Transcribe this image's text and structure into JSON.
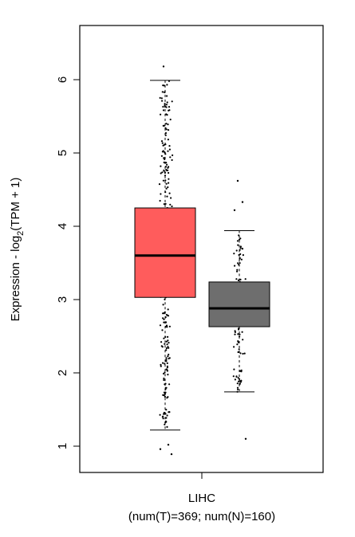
{
  "chart_data": {
    "type": "box",
    "ylabel": {
      "prefix": "Expression - log",
      "subscript": "2",
      "suffix": "(TPM + 1)"
    },
    "y_ticks": [
      1,
      2,
      3,
      4,
      5,
      6
    ],
    "ylim": [
      0.7,
      6.6
    ],
    "category": "LIHC",
    "category_note": "(num(T)=369; num(N)=160)",
    "series": [
      {
        "group": "T",
        "n": 369,
        "color": "#ff5c5c",
        "whisker_low": 1.22,
        "q1": 3.03,
        "median": 3.6,
        "q3": 4.25,
        "whisker_high": 5.99,
        "outliers": [
          6.18,
          1.02,
          0.96,
          0.89
        ]
      },
      {
        "group": "N",
        "n": 160,
        "color": "#6e6e6e",
        "whisker_low": 1.74,
        "q1": 2.63,
        "median": 2.88,
        "q3": 3.24,
        "whisker_high": 3.94,
        "outliers": [
          4.62,
          4.33,
          4.22,
          1.1
        ]
      }
    ]
  }
}
